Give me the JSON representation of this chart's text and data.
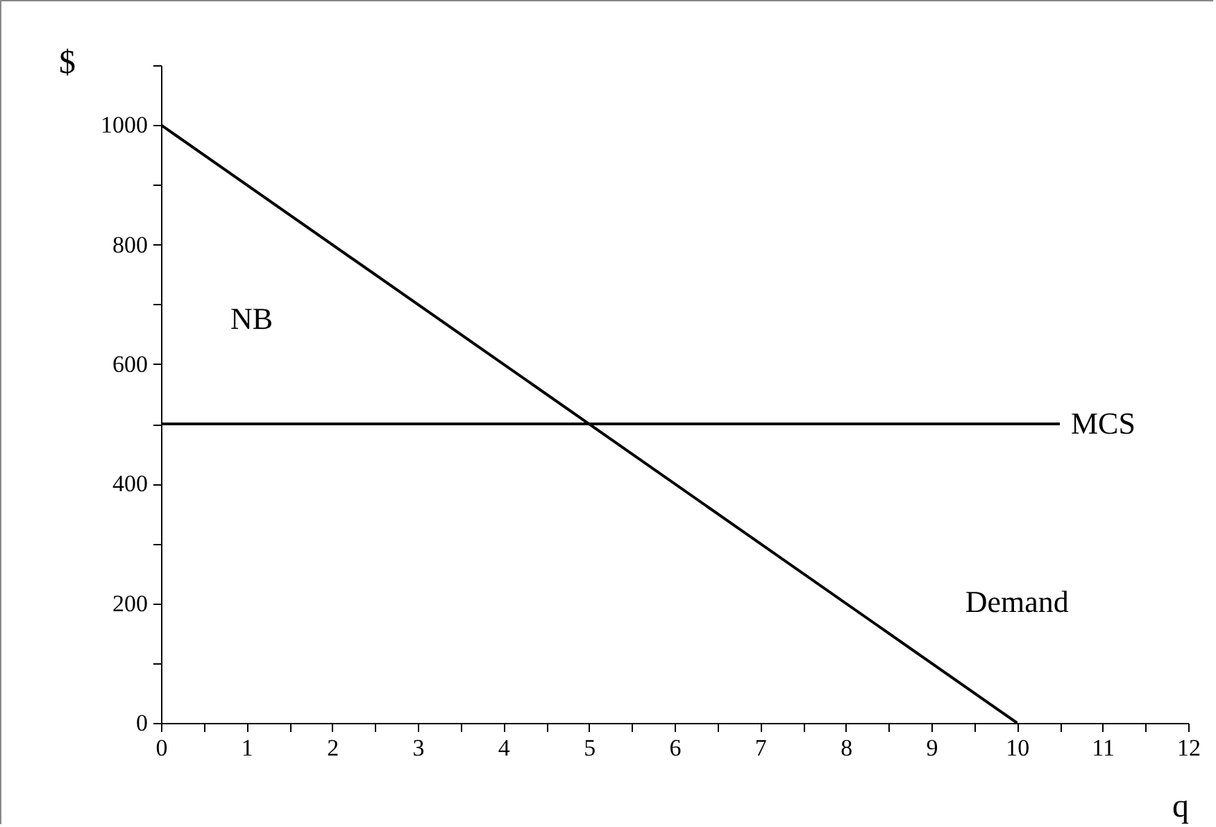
{
  "chart_data": {
    "type": "line",
    "xlabel": "q",
    "ylabel": "$",
    "series": [
      {
        "name": "Demand",
        "color": "#000000",
        "x": [
          0,
          10
        ],
        "values": [
          1000,
          0
        ]
      },
      {
        "name": "MCS",
        "color": "#000000",
        "x": [
          0,
          10.5
        ],
        "values": [
          500,
          500
        ]
      }
    ],
    "annotations": [
      "NB"
    ],
    "xlim": [
      0,
      12
    ],
    "ylim": [
      0,
      1100
    ],
    "xticks": [
      0,
      {
        "value": 0.5,
        "label": null
      },
      1,
      {
        "value": 1.5,
        "label": null
      },
      2,
      {
        "value": 2.5,
        "label": null
      },
      3,
      {
        "value": 3.5,
        "label": null
      },
      4,
      {
        "value": 4.5,
        "label": null
      },
      5,
      {
        "value": 5.5,
        "label": null
      },
      6,
      {
        "value": 6.5,
        "label": null
      },
      7,
      {
        "value": 7.5,
        "label": null
      },
      8,
      {
        "value": 8.5,
        "label": null
      },
      9,
      {
        "value": 9.5,
        "label": null
      },
      10,
      {
        "value": 10.5,
        "label": null
      },
      11,
      {
        "value": 11.5,
        "label": null
      },
      12
    ],
    "yticks": [
      0,
      {
        "value": 100,
        "label": null
      },
      200,
      {
        "value": 300,
        "label": null
      },
      400,
      {
        "value": 500,
        "label": null
      },
      600,
      {
        "value": 700,
        "label": null
      },
      800,
      {
        "value": 900,
        "label": null
      },
      1000,
      {
        "value": 1100,
        "label": null
      }
    ],
    "grid": false,
    "marker": "none",
    "line_style": "solid"
  }
}
